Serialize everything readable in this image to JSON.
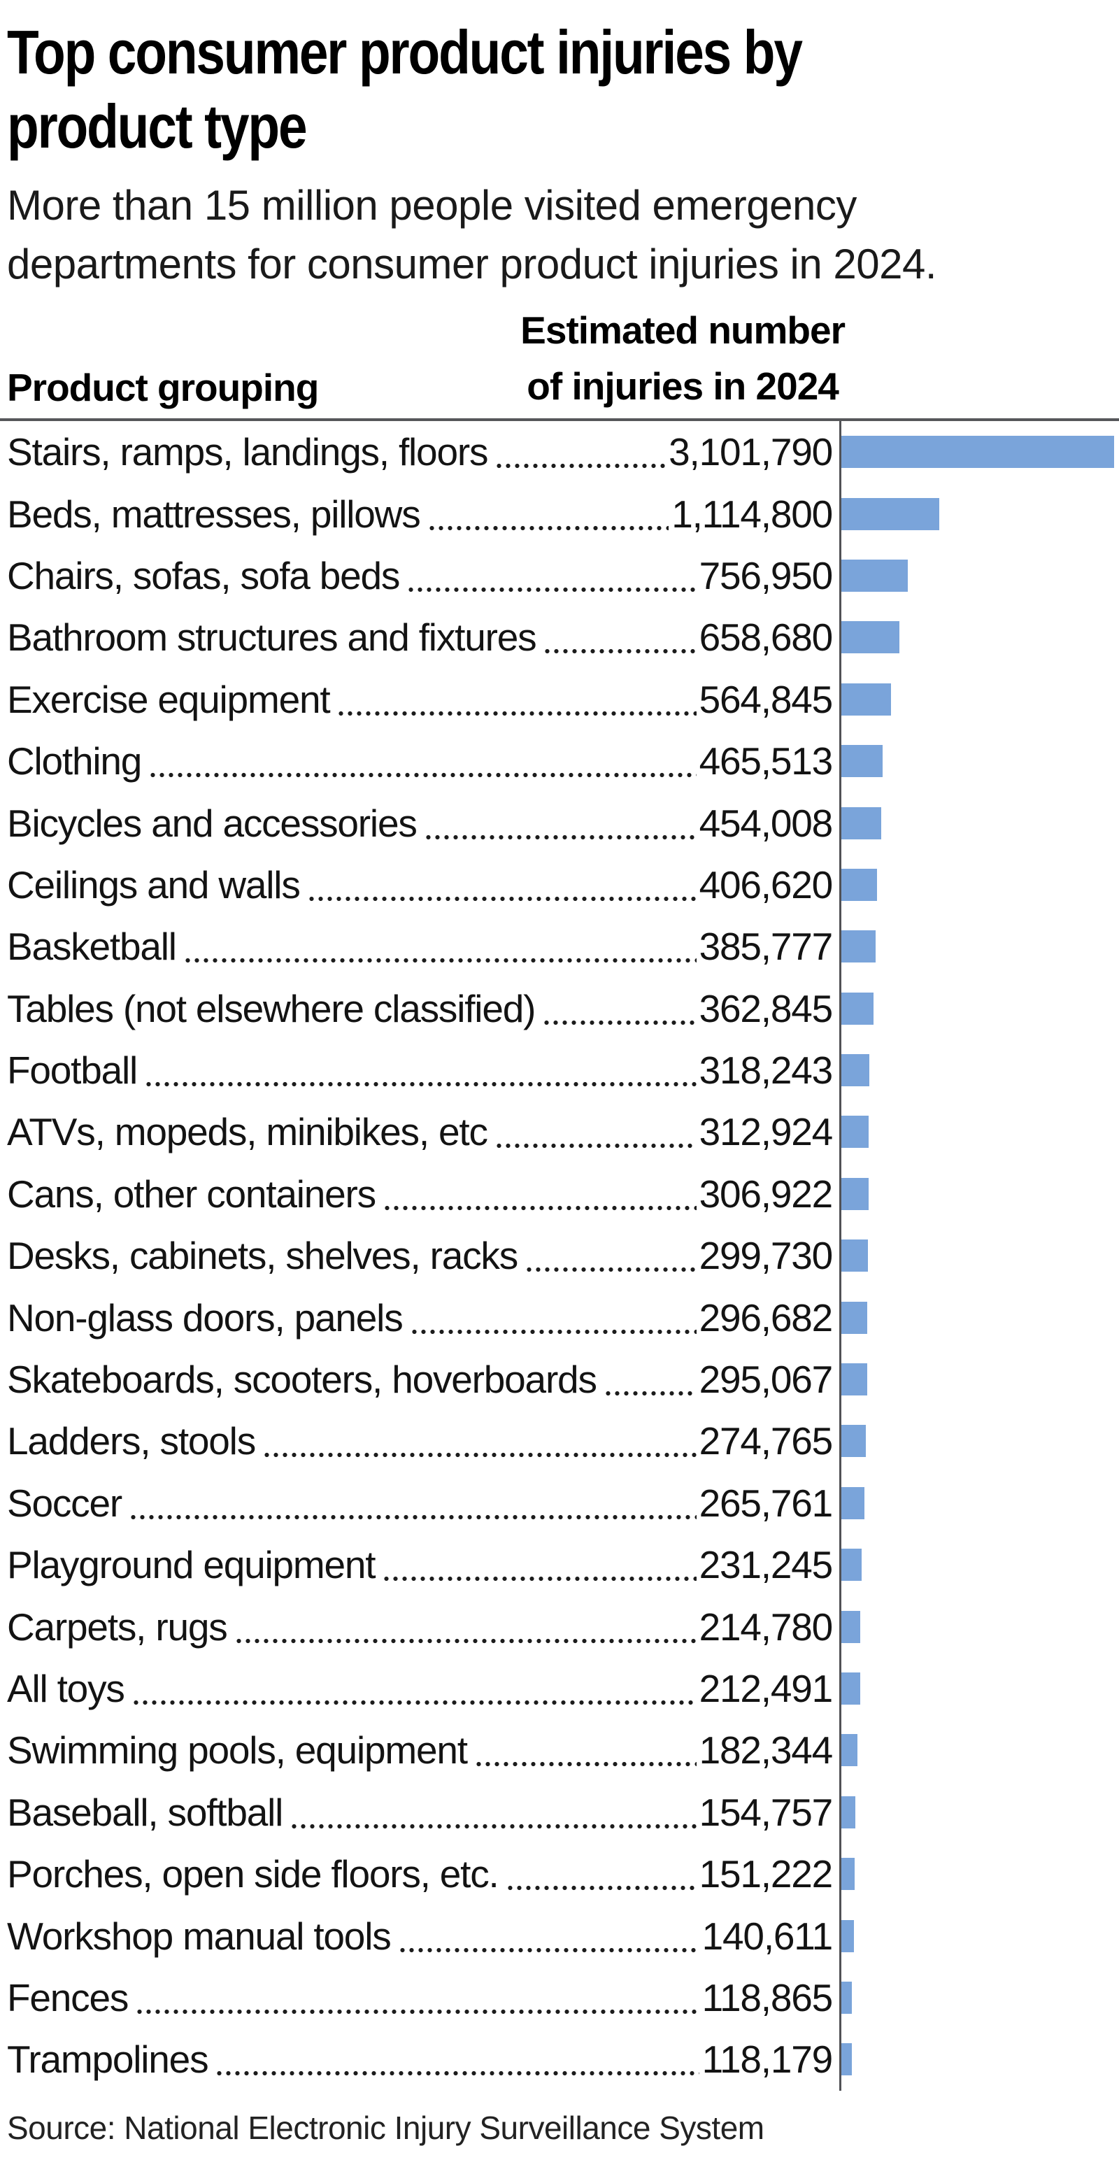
{
  "header": {
    "title_lines": [
      "Top consumer product injuries by",
      "product type"
    ],
    "subtitle_lines": [
      "More than 15 million people visited emergency",
      "departments for consumer product injuries in 2024."
    ]
  },
  "table": {
    "col1_header": "Product grouping",
    "col2_header_lines": [
      "Estimated number",
      "of injuries in 2024"
    ]
  },
  "source": "Source: National Electronic Injury Surveillance System",
  "colors": {
    "bar": "#7AA4DA",
    "axis": "#515256",
    "rule": "#56575a"
  },
  "chart_data": {
    "type": "bar",
    "orientation": "horizontal",
    "title": "Top consumer product injuries by product type",
    "subtitle": "More than 15 million people visited emergency departments for consumer product injuries in 2024.",
    "xlabel": "Estimated number of injuries in 2024",
    "ylabel": "Product grouping",
    "xlim": [
      0,
      3101790
    ],
    "grid": false,
    "legend": false,
    "value_format": "comma-separated",
    "categories": [
      "Stairs, ramps, landings, floors",
      "Beds, mattresses, pillows",
      "Chairs, sofas, sofa beds",
      "Bathroom structures and fixtures",
      "Exercise equipment",
      "Clothing",
      "Bicycles and accessories",
      "Ceilings and walls",
      "Basketball",
      "Tables (not elsewhere classified)",
      "Football",
      "ATVs, mopeds, minibikes, etc",
      "Cans, other containers",
      "Desks, cabinets, shelves, racks",
      "Non-glass doors, panels",
      "Skateboards, scooters, hoverboards",
      "Ladders, stools",
      "Soccer",
      "Playground equipment",
      "Carpets, rugs",
      "All toys",
      "Swimming pools, equipment",
      "Baseball, softball",
      "Porches, open side floors, etc.",
      "Workshop manual tools",
      "Fences",
      "Trampolines"
    ],
    "values": [
      3101790,
      1114800,
      756950,
      658680,
      564845,
      465513,
      454008,
      406620,
      385777,
      362845,
      318243,
      312924,
      306922,
      299730,
      296682,
      295067,
      274765,
      265761,
      231245,
      214780,
      212491,
      182344,
      154757,
      151222,
      140611,
      118865,
      118179
    ],
    "source": "Source: National Electronic Injury Surveillance System"
  }
}
